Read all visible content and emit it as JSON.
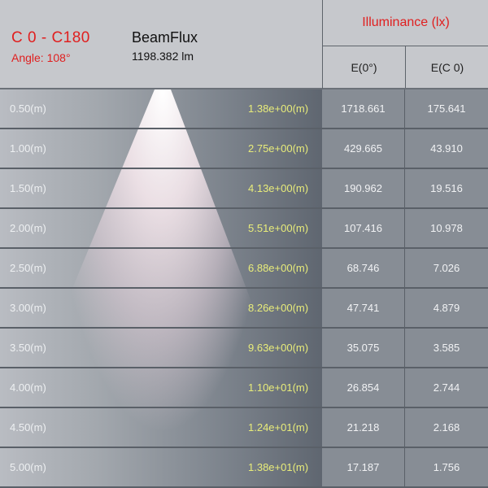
{
  "header": {
    "plane": "C 0 - C180",
    "angle": "Angle: 108°",
    "flux_label": "BeamFlux",
    "flux_value": "1198.382 lm",
    "illuminance_title": "Illuminance (lx)",
    "col_e0": "E(0°)",
    "col_ec0": "E(C 0)"
  },
  "colors": {
    "accent": "#e01f1f",
    "diameter_text": "#e8ec7a"
  },
  "rows": [
    {
      "distance": "0.50(m)",
      "diameter": "1.38e+00(m)",
      "e0": "1718.661",
      "ec0": "175.641"
    },
    {
      "distance": "1.00(m)",
      "diameter": "2.75e+00(m)",
      "e0": "429.665",
      "ec0": "43.910"
    },
    {
      "distance": "1.50(m)",
      "diameter": "4.13e+00(m)",
      "e0": "190.962",
      "ec0": "19.516"
    },
    {
      "distance": "2.00(m)",
      "diameter": "5.51e+00(m)",
      "e0": "107.416",
      "ec0": "10.978"
    },
    {
      "distance": "2.50(m)",
      "diameter": "6.88e+00(m)",
      "e0": "68.746",
      "ec0": "7.026"
    },
    {
      "distance": "3.00(m)",
      "diameter": "8.26e+00(m)",
      "e0": "47.741",
      "ec0": "4.879"
    },
    {
      "distance": "3.50(m)",
      "diameter": "9.63e+00(m)",
      "e0": "35.075",
      "ec0": "3.585"
    },
    {
      "distance": "4.00(m)",
      "diameter": "1.10e+01(m)",
      "e0": "26.854",
      "ec0": "2.744"
    },
    {
      "distance": "4.50(m)",
      "diameter": "1.24e+01(m)",
      "e0": "21.218",
      "ec0": "2.168"
    },
    {
      "distance": "5.00(m)",
      "diameter": "1.38e+01(m)",
      "e0": "17.187",
      "ec0": "1.756"
    }
  ]
}
